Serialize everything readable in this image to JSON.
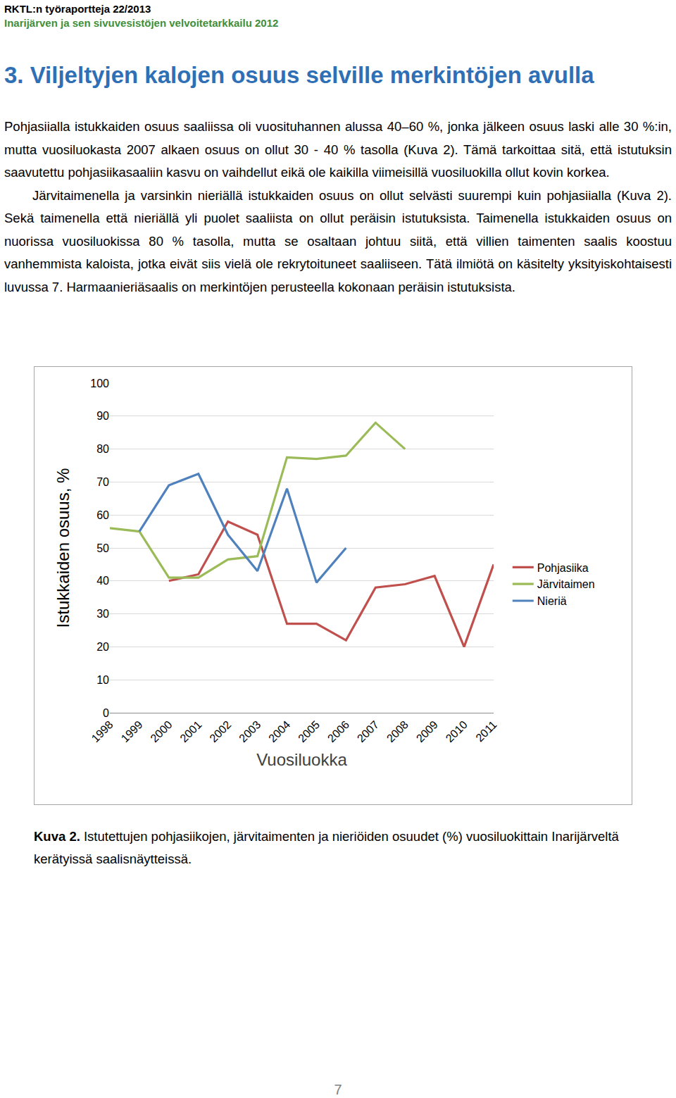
{
  "header": {
    "series": "RKTL:n työraportteja 22/2013",
    "report": "Inarijärven ja sen sivuvesistöjen velvoitetarkkailu 2012"
  },
  "heading": "3. Viljeltyjen kalojen osuus selville merkintöjen avulla",
  "paragraphs": [
    "Pohjasiialla istukkaiden osuus saaliissa oli vuosituhannen alussa 40–60 %, jonka jälkeen osuus laski alle 30 %:in, mutta vuosiluokasta 2007 alkaen osuus on ollut 30 - 40 % tasolla (Kuva 2). Tämä tarkoittaa sitä, että istutuksin saavutettu pohjasiikasaaliin kasvu on vaihdellut eikä ole kaikilla viimeisillä vuosiluokilla ollut kovin korkea.",
    "Järvitaimenella ja varsinkin nieriällä istukkaiden osuus on ollut selvästi suurempi kuin pohjasiialla (Kuva 2). Sekä taimenella että nieriällä yli puolet saaliista on ollut peräisin istutuksista. Taimenella istukkaiden osuus on nuorissa vuosiluokissa 80 % tasolla, mutta se osaltaan johtuu siitä, että villien taimenten saalis koostuu vanhemmista kaloista, jotka eivät siis vielä ole rekrytoituneet saaliiseen. Tätä ilmiötä on käsitelty yksityiskohtaisesti luvussa 7. Harmaanieriäsaalis on merkintöjen perusteella kokonaan peräisin istutuksista."
  ],
  "chart_data": {
    "type": "line",
    "x_label": "Vuosiluokka",
    "y_label": "Istukkaiden osuus, %",
    "categories": [
      "1998",
      "1999",
      "2000",
      "2001",
      "2002",
      "2003",
      "2004",
      "2005",
      "2006",
      "2007",
      "2008",
      "2009",
      "2010",
      "2011"
    ],
    "series": [
      {
        "name": "Pohjasiika",
        "color": "#c0504d",
        "values": [
          null,
          null,
          40,
          42,
          58,
          54,
          27,
          27,
          22,
          38,
          39,
          41.5,
          20,
          45
        ]
      },
      {
        "name": "Järvitaimen",
        "color": "#9bbb59",
        "values": [
          56,
          55,
          41,
          41,
          46.5,
          47.5,
          77.5,
          77,
          78,
          88,
          80,
          null,
          null,
          null
        ]
      },
      {
        "name": "Nieriä",
        "color": "#4f81bd",
        "values": [
          null,
          55,
          69,
          72.5,
          54,
          43,
          68,
          39.5,
          50,
          null,
          null,
          null,
          null,
          null
        ]
      }
    ],
    "ylim": [
      0,
      100
    ],
    "yticks": [
      0,
      10,
      20,
      30,
      40,
      50,
      60,
      70,
      80,
      90,
      100
    ],
    "grid": true,
    "legend": "right"
  },
  "caption": {
    "label": "Kuva 2.",
    "text": "Istutettujen pohjasiikojen, järvitaimenten ja nieriöiden osuudet (%) vuosiluokittain Inarijärveltä kerätyissä saalisnäytteissä."
  },
  "page_number": 7
}
